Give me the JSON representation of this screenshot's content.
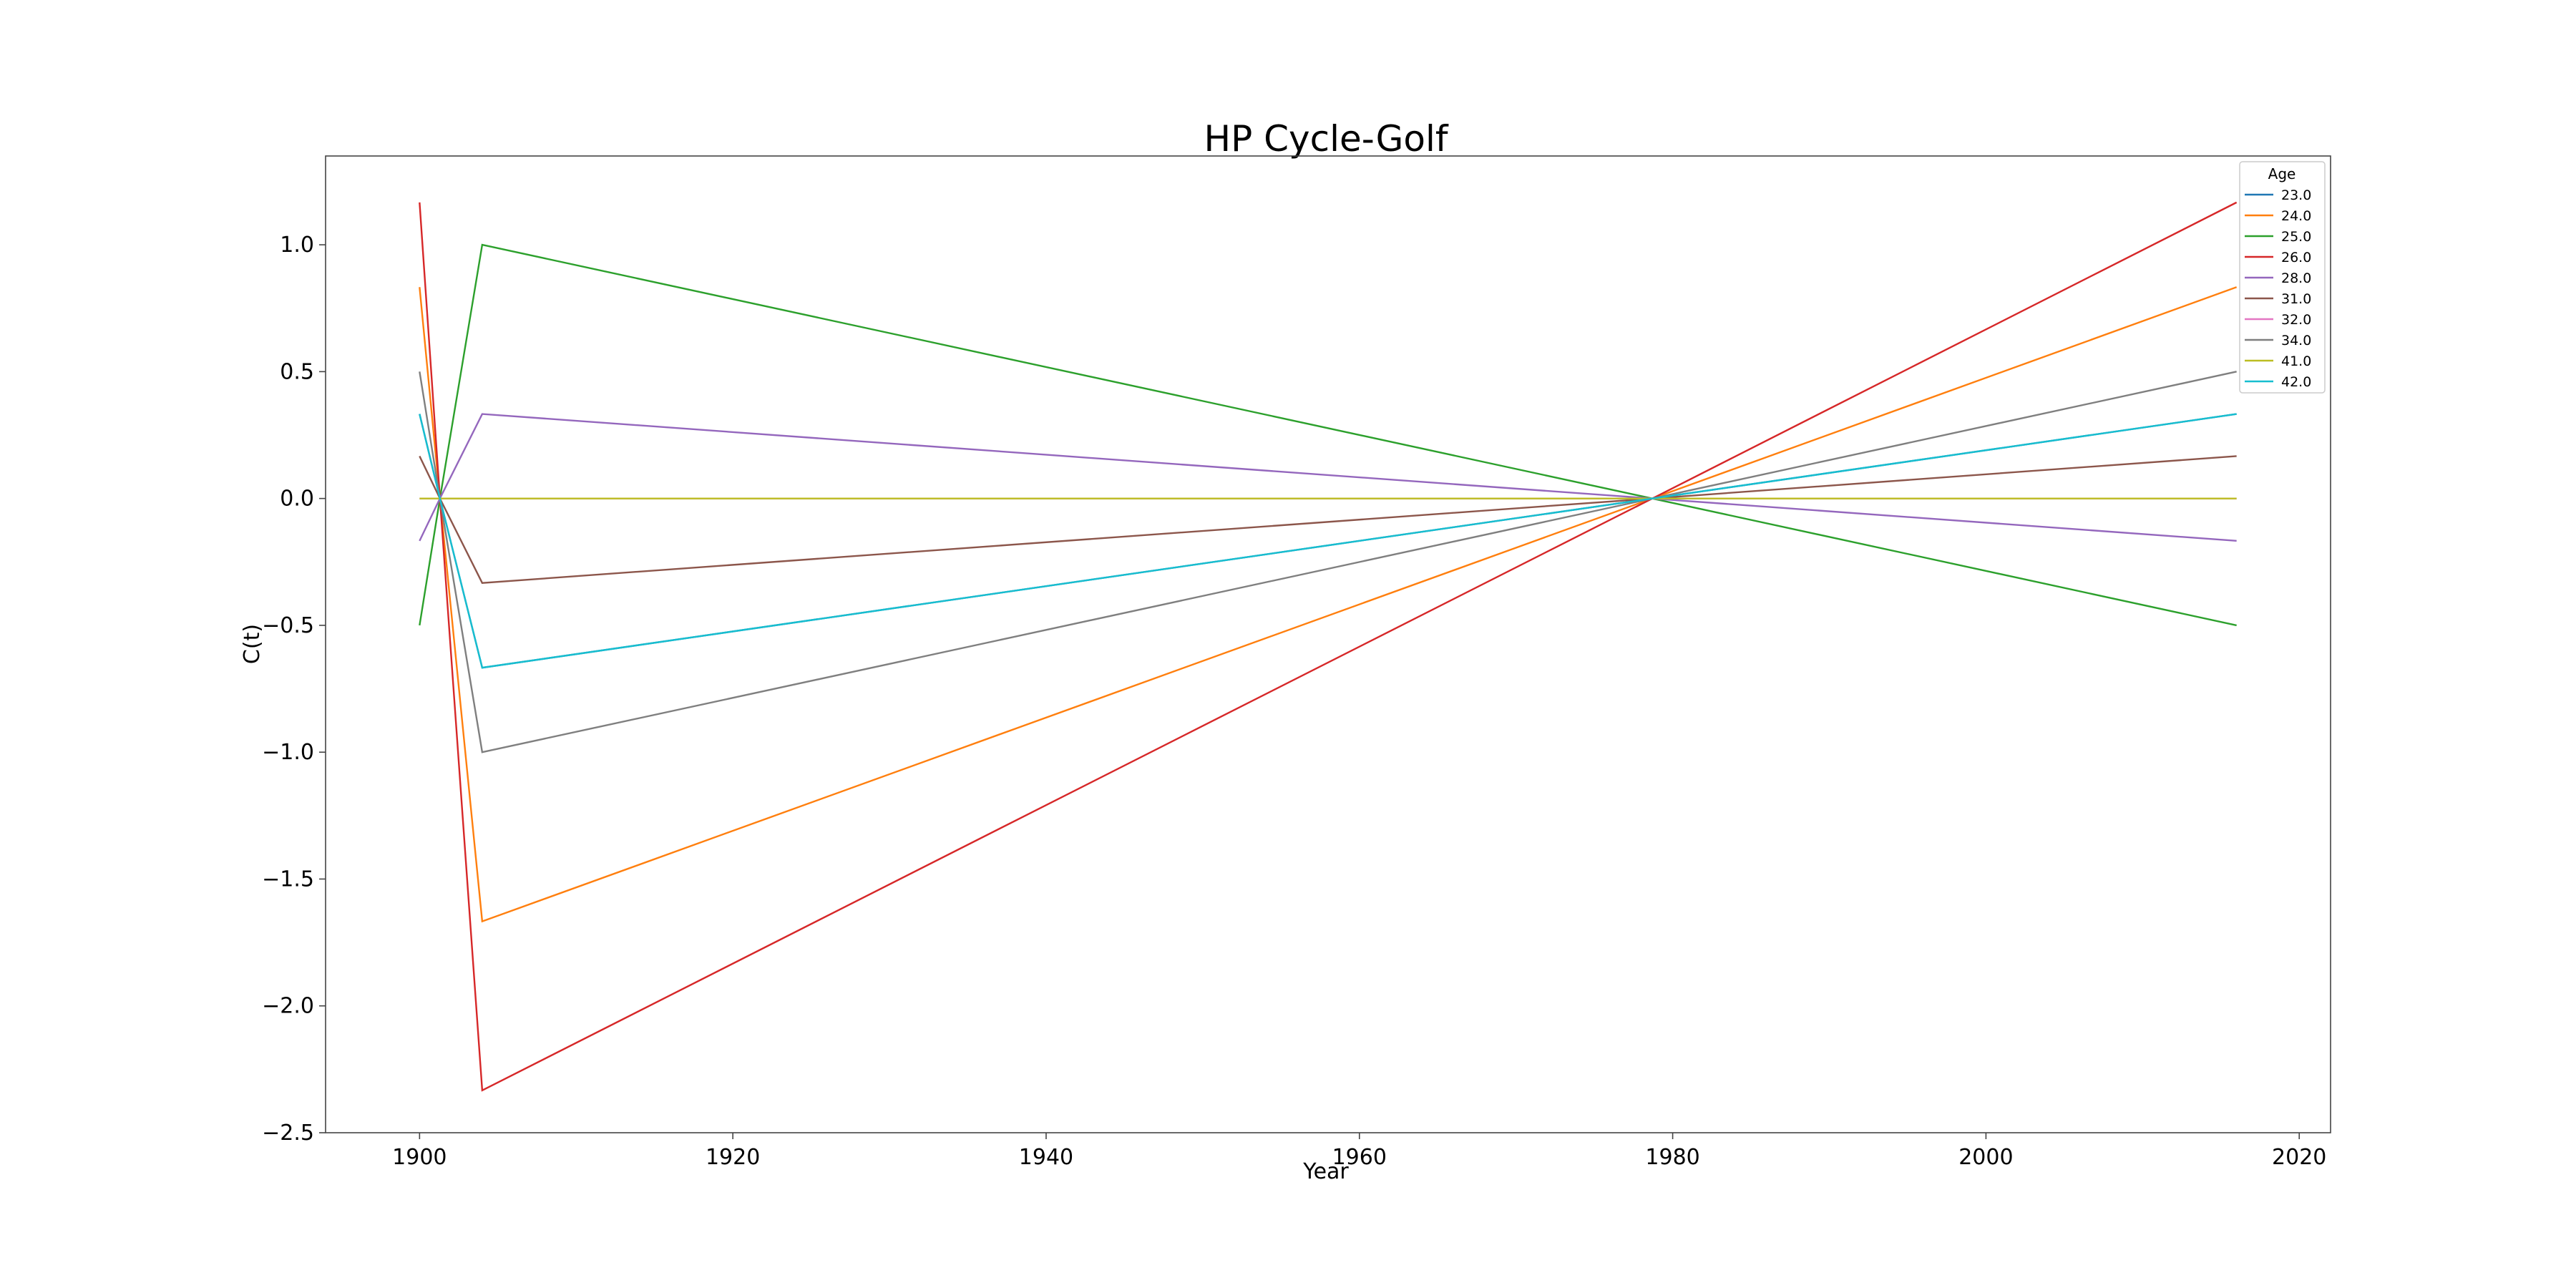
{
  "chart_data": {
    "type": "line",
    "title": "HP Cycle-Golf",
    "xlabel": "Year",
    "ylabel": "C(t)",
    "xlim": [
      1894,
      2022
    ],
    "ylim": [
      -2.5,
      1.35
    ],
    "xticks": [
      1900,
      1920,
      1940,
      1960,
      1980,
      2000,
      2020
    ],
    "yticks": [
      -2.5,
      -2.0,
      -1.5,
      -1.0,
      -0.5,
      0.0,
      0.5,
      1.0
    ],
    "ytick_labels": [
      "−2.5",
      "−2.0",
      "−1.5",
      "−1.0",
      "−0.5",
      "0.0",
      "0.5",
      "1.0"
    ],
    "grid": false,
    "legend": {
      "title": "Age",
      "placement": "top-right"
    },
    "x": [
      1900,
      1901.3,
      1904,
      1978.7,
      2016
    ],
    "series": [
      {
        "name": "23.0",
        "color": "#1f77b4",
        "values": [
          0.333,
          0,
          -0.667,
          0,
          0.333
        ]
      },
      {
        "name": "24.0",
        "color": "#ff7f0e",
        "values": [
          0.833,
          0,
          -1.667,
          0,
          0.833
        ]
      },
      {
        "name": "25.0",
        "color": "#2ca02c",
        "values": [
          -0.5,
          0,
          1.0,
          0,
          -0.5
        ]
      },
      {
        "name": "26.0",
        "color": "#d62728",
        "values": [
          1.167,
          0,
          -2.333,
          0,
          1.167
        ]
      },
      {
        "name": "28.0",
        "color": "#9467bd",
        "values": [
          -0.167,
          0,
          0.333,
          0,
          -0.167
        ]
      },
      {
        "name": "31.0",
        "color": "#8c564b",
        "values": [
          0.167,
          0,
          -0.333,
          0,
          0.167
        ]
      },
      {
        "name": "32.0",
        "color": "#e377c2",
        "values": [
          0,
          0,
          0,
          0,
          0
        ]
      },
      {
        "name": "34.0",
        "color": "#7f7f7f",
        "values": [
          0.5,
          0,
          -1.0,
          0,
          0.5
        ]
      },
      {
        "name": "41.0",
        "color": "#bcbd22",
        "values": [
          0,
          0,
          0,
          0,
          0
        ]
      },
      {
        "name": "42.0",
        "color": "#17becf",
        "values": [
          0.333,
          0,
          -0.667,
          0,
          0.333
        ]
      }
    ]
  }
}
